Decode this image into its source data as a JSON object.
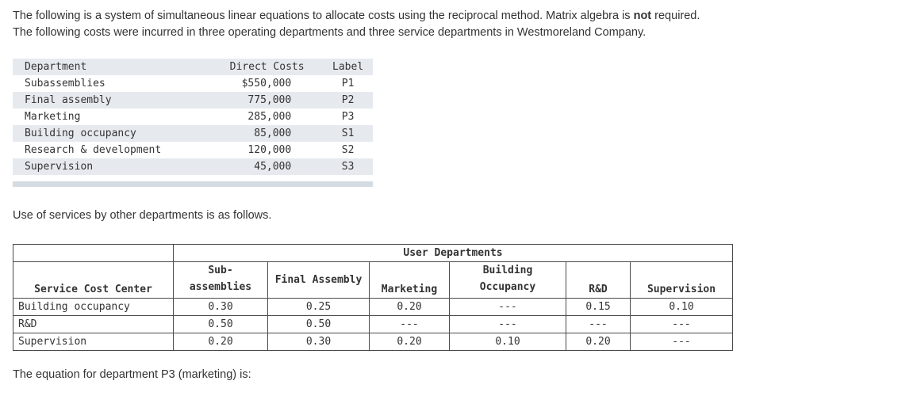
{
  "intro": {
    "line1_before": "The following is a system of simultaneous linear equations to allocate costs using the reciprocal method. Matrix algebra is ",
    "line1_bold": "not",
    "line1_after": " required.",
    "line2": "The following costs were incurred in three operating departments and three service departments in Westmoreland Company."
  },
  "cost_table": {
    "headers": [
      "Department",
      "Direct Costs",
      "Label"
    ],
    "rows": [
      [
        "Subassemblies",
        "$550,000",
        "P1"
      ],
      [
        "Final assembly",
        "775,000",
        "P2"
      ],
      [
        "Marketing",
        "285,000",
        "P3"
      ],
      [
        "Building occupancy",
        "85,000",
        "S1"
      ],
      [
        "Research & development",
        "120,000",
        "S2"
      ],
      [
        "Supervision",
        "45,000",
        "S3"
      ]
    ]
  },
  "mid_text": "Use of services by other departments is as follows.",
  "use_table": {
    "group_header": "User Departments",
    "corner_header": "Service Cost Center",
    "col_headers": [
      {
        "line1": "Sub-",
        "line2": "assemblies"
      },
      {
        "line1": "Final Assembly",
        "line2": ""
      },
      {
        "line1": "",
        "line2": "Marketing"
      },
      {
        "line1": "Building",
        "line2": "Occupancy"
      },
      {
        "line1": "",
        "line2": "R&D"
      },
      {
        "line1": "",
        "line2": "Supervision"
      }
    ],
    "rows": [
      {
        "label": "Building occupancy",
        "values": [
          "0.30",
          "0.25",
          "0.20",
          "---",
          "0.15",
          "0.10"
        ]
      },
      {
        "label": "R&D",
        "values": [
          "0.50",
          "0.50",
          "---",
          "---",
          "---",
          "---"
        ]
      },
      {
        "label": "Supervision",
        "values": [
          "0.20",
          "0.30",
          "0.20",
          "0.10",
          "0.20",
          "---"
        ]
      }
    ]
  },
  "bottom_text": "The equation for department P3 (marketing) is:"
}
